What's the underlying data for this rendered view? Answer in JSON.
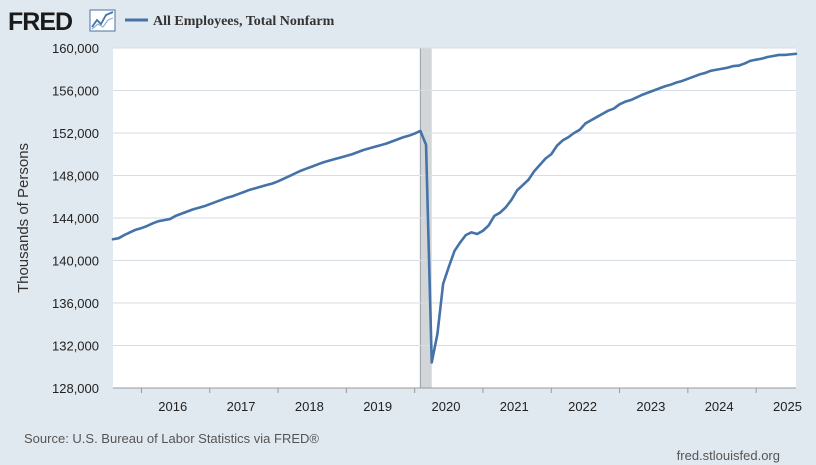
{
  "header": {
    "logo_text": "FRED",
    "legend_label": "All Employees, Total Nonfarm",
    "series_color": "#4572a7"
  },
  "footer": {
    "source": "Source: U.S. Bureau of Labor Statistics via FRED®",
    "url": "fred.stlouisfed.org"
  },
  "colors": {
    "background": "#e1e9f0",
    "plot_background": "#ffffff",
    "grid": "#d6dde4",
    "recession": "#d3d6d9",
    "series": "#4572a7"
  },
  "chart_data": {
    "type": "line",
    "ylabel": "Thousands of Persons",
    "xlabel": "",
    "ylim": [
      128000,
      160000
    ],
    "y_ticks": [
      128000,
      132000,
      136000,
      140000,
      144000,
      148000,
      152000,
      156000,
      160000
    ],
    "y_tick_labels": [
      "128,000",
      "132,000",
      "136,000",
      "140,000",
      "144,000",
      "148,000",
      "152,000",
      "156,000",
      "160,000"
    ],
    "x_ticks": [
      2016,
      2017,
      2018,
      2019,
      2020,
      2021,
      2022,
      2023,
      2024,
      2025
    ],
    "x_tick_labels": [
      "2016",
      "2017",
      "2018",
      "2019",
      "2020",
      "2021",
      "2022",
      "2023",
      "2024",
      "2025"
    ],
    "xlim": [
      "2015-08",
      "2025-08"
    ],
    "grid": true,
    "recession_shading": [
      {
        "start": "2020-02",
        "end": "2020-04"
      }
    ],
    "series": [
      {
        "name": "All Employees, Total Nonfarm",
        "color": "#4572a7",
        "points": [
          [
            "2015-08",
            142000
          ],
          [
            "2015-09",
            142100
          ],
          [
            "2015-10",
            142400
          ],
          [
            "2015-11",
            142650
          ],
          [
            "2015-12",
            142900
          ],
          [
            "2016-01",
            143050
          ],
          [
            "2016-02",
            143250
          ],
          [
            "2016-03",
            143500
          ],
          [
            "2016-04",
            143700
          ],
          [
            "2016-05",
            143800
          ],
          [
            "2016-06",
            143900
          ],
          [
            "2016-07",
            144200
          ],
          [
            "2016-08",
            144400
          ],
          [
            "2016-09",
            144600
          ],
          [
            "2016-10",
            144800
          ],
          [
            "2016-11",
            144950
          ],
          [
            "2016-12",
            145100
          ],
          [
            "2017-01",
            145300
          ],
          [
            "2017-02",
            145500
          ],
          [
            "2017-03",
            145700
          ],
          [
            "2017-04",
            145900
          ],
          [
            "2017-05",
            146050
          ],
          [
            "2017-06",
            146250
          ],
          [
            "2017-07",
            146450
          ],
          [
            "2017-08",
            146650
          ],
          [
            "2017-09",
            146800
          ],
          [
            "2017-10",
            146950
          ],
          [
            "2017-11",
            147100
          ],
          [
            "2017-12",
            147250
          ],
          [
            "2018-01",
            147450
          ],
          [
            "2018-02",
            147700
          ],
          [
            "2018-03",
            147950
          ],
          [
            "2018-04",
            148200
          ],
          [
            "2018-05",
            148450
          ],
          [
            "2018-06",
            148650
          ],
          [
            "2018-07",
            148850
          ],
          [
            "2018-08",
            149050
          ],
          [
            "2018-09",
            149250
          ],
          [
            "2018-10",
            149400
          ],
          [
            "2018-11",
            149550
          ],
          [
            "2018-12",
            149700
          ],
          [
            "2019-01",
            149850
          ],
          [
            "2019-02",
            150000
          ],
          [
            "2019-03",
            150200
          ],
          [
            "2019-04",
            150400
          ],
          [
            "2019-05",
            150550
          ],
          [
            "2019-06",
            150700
          ],
          [
            "2019-07",
            150850
          ],
          [
            "2019-08",
            151000
          ],
          [
            "2019-09",
            151200
          ],
          [
            "2019-10",
            151400
          ],
          [
            "2019-11",
            151600
          ],
          [
            "2019-12",
            151750
          ],
          [
            "2020-01",
            151950
          ],
          [
            "2020-02",
            152200
          ],
          [
            "2020-03",
            150900
          ],
          [
            "2020-04",
            130400
          ],
          [
            "2020-05",
            133100
          ],
          [
            "2020-06",
            137800
          ],
          [
            "2020-07",
            139400
          ],
          [
            "2020-08",
            140900
          ],
          [
            "2020-09",
            141700
          ],
          [
            "2020-10",
            142400
          ],
          [
            "2020-11",
            142650
          ],
          [
            "2020-12",
            142500
          ],
          [
            "2021-01",
            142800
          ],
          [
            "2021-02",
            143300
          ],
          [
            "2021-03",
            144200
          ],
          [
            "2021-04",
            144500
          ],
          [
            "2021-05",
            145000
          ],
          [
            "2021-06",
            145700
          ],
          [
            "2021-07",
            146600
          ],
          [
            "2021-08",
            147100
          ],
          [
            "2021-09",
            147600
          ],
          [
            "2021-10",
            148400
          ],
          [
            "2021-11",
            149000
          ],
          [
            "2021-12",
            149600
          ],
          [
            "2022-01",
            150000
          ],
          [
            "2022-02",
            150800
          ],
          [
            "2022-03",
            151300
          ],
          [
            "2022-04",
            151600
          ],
          [
            "2022-05",
            152000
          ],
          [
            "2022-06",
            152300
          ],
          [
            "2022-07",
            152900
          ],
          [
            "2022-08",
            153200
          ],
          [
            "2022-09",
            153500
          ],
          [
            "2022-10",
            153800
          ],
          [
            "2022-11",
            154100
          ],
          [
            "2022-12",
            154300
          ],
          [
            "2023-01",
            154700
          ],
          [
            "2023-02",
            154950
          ],
          [
            "2023-03",
            155100
          ],
          [
            "2023-04",
            155350
          ],
          [
            "2023-05",
            155600
          ],
          [
            "2023-06",
            155800
          ],
          [
            "2023-07",
            156000
          ],
          [
            "2023-08",
            156200
          ],
          [
            "2023-09",
            156400
          ],
          [
            "2023-10",
            156550
          ],
          [
            "2023-11",
            156750
          ],
          [
            "2023-12",
            156900
          ],
          [
            "2024-01",
            157100
          ],
          [
            "2024-02",
            157300
          ],
          [
            "2024-03",
            157500
          ],
          [
            "2024-04",
            157650
          ],
          [
            "2024-05",
            157850
          ],
          [
            "2024-06",
            157950
          ],
          [
            "2024-07",
            158050
          ],
          [
            "2024-08",
            158150
          ],
          [
            "2024-09",
            158300
          ],
          [
            "2024-10",
            158350
          ],
          [
            "2024-11",
            158550
          ],
          [
            "2024-12",
            158800
          ],
          [
            "2025-01",
            158900
          ],
          [
            "2025-02",
            159000
          ],
          [
            "2025-03",
            159150
          ],
          [
            "2025-04",
            159250
          ],
          [
            "2025-05",
            159350
          ],
          [
            "2025-06",
            159350
          ],
          [
            "2025-07",
            159400
          ],
          [
            "2025-08",
            159450
          ]
        ]
      }
    ]
  }
}
